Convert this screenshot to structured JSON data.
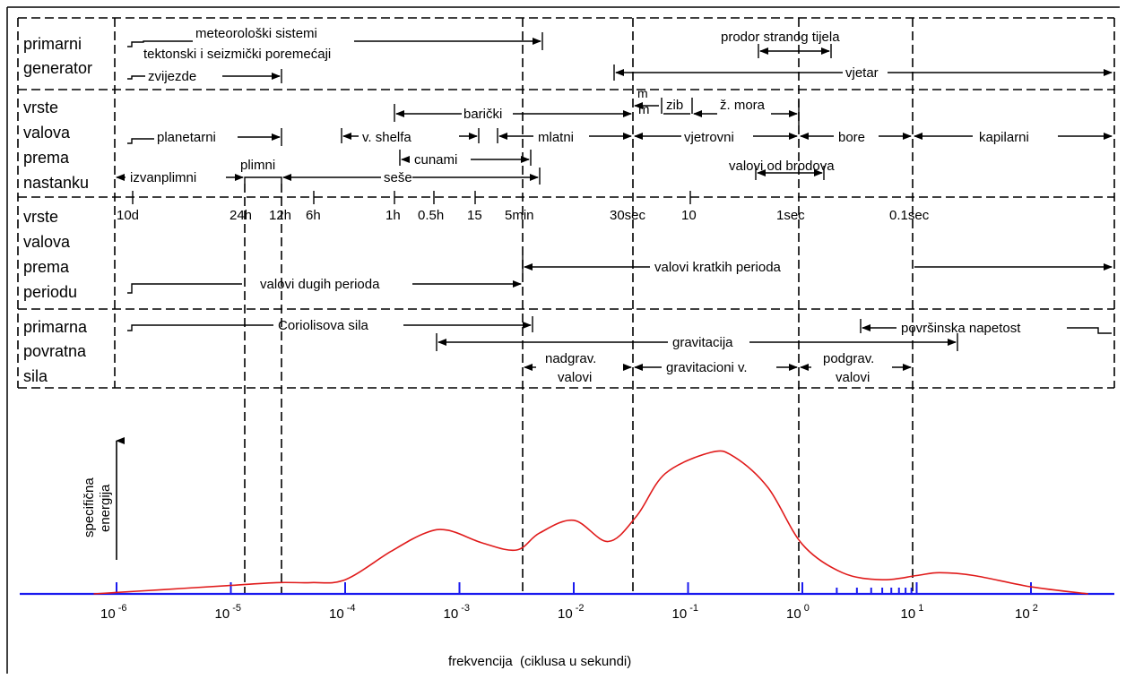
{
  "sections": {
    "primary_generator": [
      "primarni",
      "generator"
    ],
    "origin": [
      "vrste",
      "valova",
      "prema",
      "nastanku"
    ],
    "period": [
      "vrste",
      "valova",
      "prema",
      "periodu"
    ],
    "restoring_force": [
      "primarna",
      "povratna",
      "sila"
    ]
  },
  "generator_labels": {
    "meteo": "meteorološki sistemi",
    "tectonic": "tektonski i seizmički poremećaji",
    "stars": "zvijezde",
    "foreign_body": "prodor stranog tijela",
    "wind": "vjetar"
  },
  "origin_labels": {
    "m_top": "m",
    "m_bottom": "m",
    "zib": "zib",
    "sea": "ž. mora",
    "baric": "barički",
    "planetary": "planetarni",
    "shelf": "v. shelfa",
    "mlatni": "mlatni",
    "wind_waves": "vjetrovni",
    "ripples": "bore",
    "capillary": "kapilarni",
    "tsunami": "cunami",
    "ship_waves": "valovi od brodova",
    "tidal": "plimni",
    "extratidal": "izvanplimni",
    "seiche": "seše"
  },
  "period_ticks": [
    "10d",
    "24h",
    "12h",
    "6h",
    "1h",
    "0.5h",
    "15",
    "5min",
    "30sec",
    "10",
    "1sec",
    "0.1sec"
  ],
  "period_labels": {
    "long": "valovi dugih perioda",
    "short": "valovi kratkih perioda"
  },
  "force_labels": {
    "coriolis": "Coriolisova sila",
    "surface_tension": "površinska napetost",
    "gravity": "gravitacija",
    "supergrav": [
      "nadgrav.",
      "valovi"
    ],
    "grav_waves": "gravitacioni v.",
    "subgrav": [
      "podgrav.",
      "valovi"
    ]
  },
  "chart_data": {
    "type": "line",
    "xscale": "log",
    "xlabel": "frekvencija  (ciklusa u sekundi)",
    "ylabel": [
      "specifična",
      "energija"
    ],
    "x_ticks": [
      {
        "base": "10",
        "exp": "-6"
      },
      {
        "base": "10",
        "exp": "-5"
      },
      {
        "base": "10",
        "exp": "-4"
      },
      {
        "base": "10",
        "exp": "-3"
      },
      {
        "base": "10",
        "exp": "-2"
      },
      {
        "base": "10",
        "exp": "-1"
      },
      {
        "base": "10",
        "exp": "0"
      },
      {
        "base": "10",
        "exp": "1"
      },
      {
        "base": "10",
        "exp": "2"
      }
    ],
    "xlim_log10": [
      -6.2,
      2.5
    ],
    "ylim": [
      0,
      1
    ],
    "series": [
      {
        "color": "#e01b1b",
        "points_log10x_y": [
          [
            -6.2,
            0.0
          ],
          [
            -5.6,
            0.03
          ],
          [
            -5.0,
            0.06
          ],
          [
            -4.6,
            0.08
          ],
          [
            -4.3,
            0.08
          ],
          [
            -4.0,
            0.1
          ],
          [
            -3.6,
            0.3
          ],
          [
            -3.3,
            0.43
          ],
          [
            -3.1,
            0.45
          ],
          [
            -2.8,
            0.36
          ],
          [
            -2.5,
            0.31
          ],
          [
            -2.3,
            0.43
          ],
          [
            -2.0,
            0.52
          ],
          [
            -1.7,
            0.37
          ],
          [
            -1.45,
            0.55
          ],
          [
            -1.2,
            0.85
          ],
          [
            -0.8,
            1.0
          ],
          [
            -0.6,
            0.97
          ],
          [
            -0.3,
            0.75
          ],
          [
            0.0,
            0.35
          ],
          [
            0.35,
            0.15
          ],
          [
            0.7,
            0.1
          ],
          [
            1.0,
            0.13
          ],
          [
            1.2,
            0.15
          ],
          [
            1.5,
            0.13
          ],
          [
            2.0,
            0.05
          ],
          [
            2.5,
            0.0
          ]
        ]
      }
    ],
    "colors": {
      "curve": "#e01b1b",
      "axis": "#1a1aee",
      "frame": "#000000"
    }
  }
}
